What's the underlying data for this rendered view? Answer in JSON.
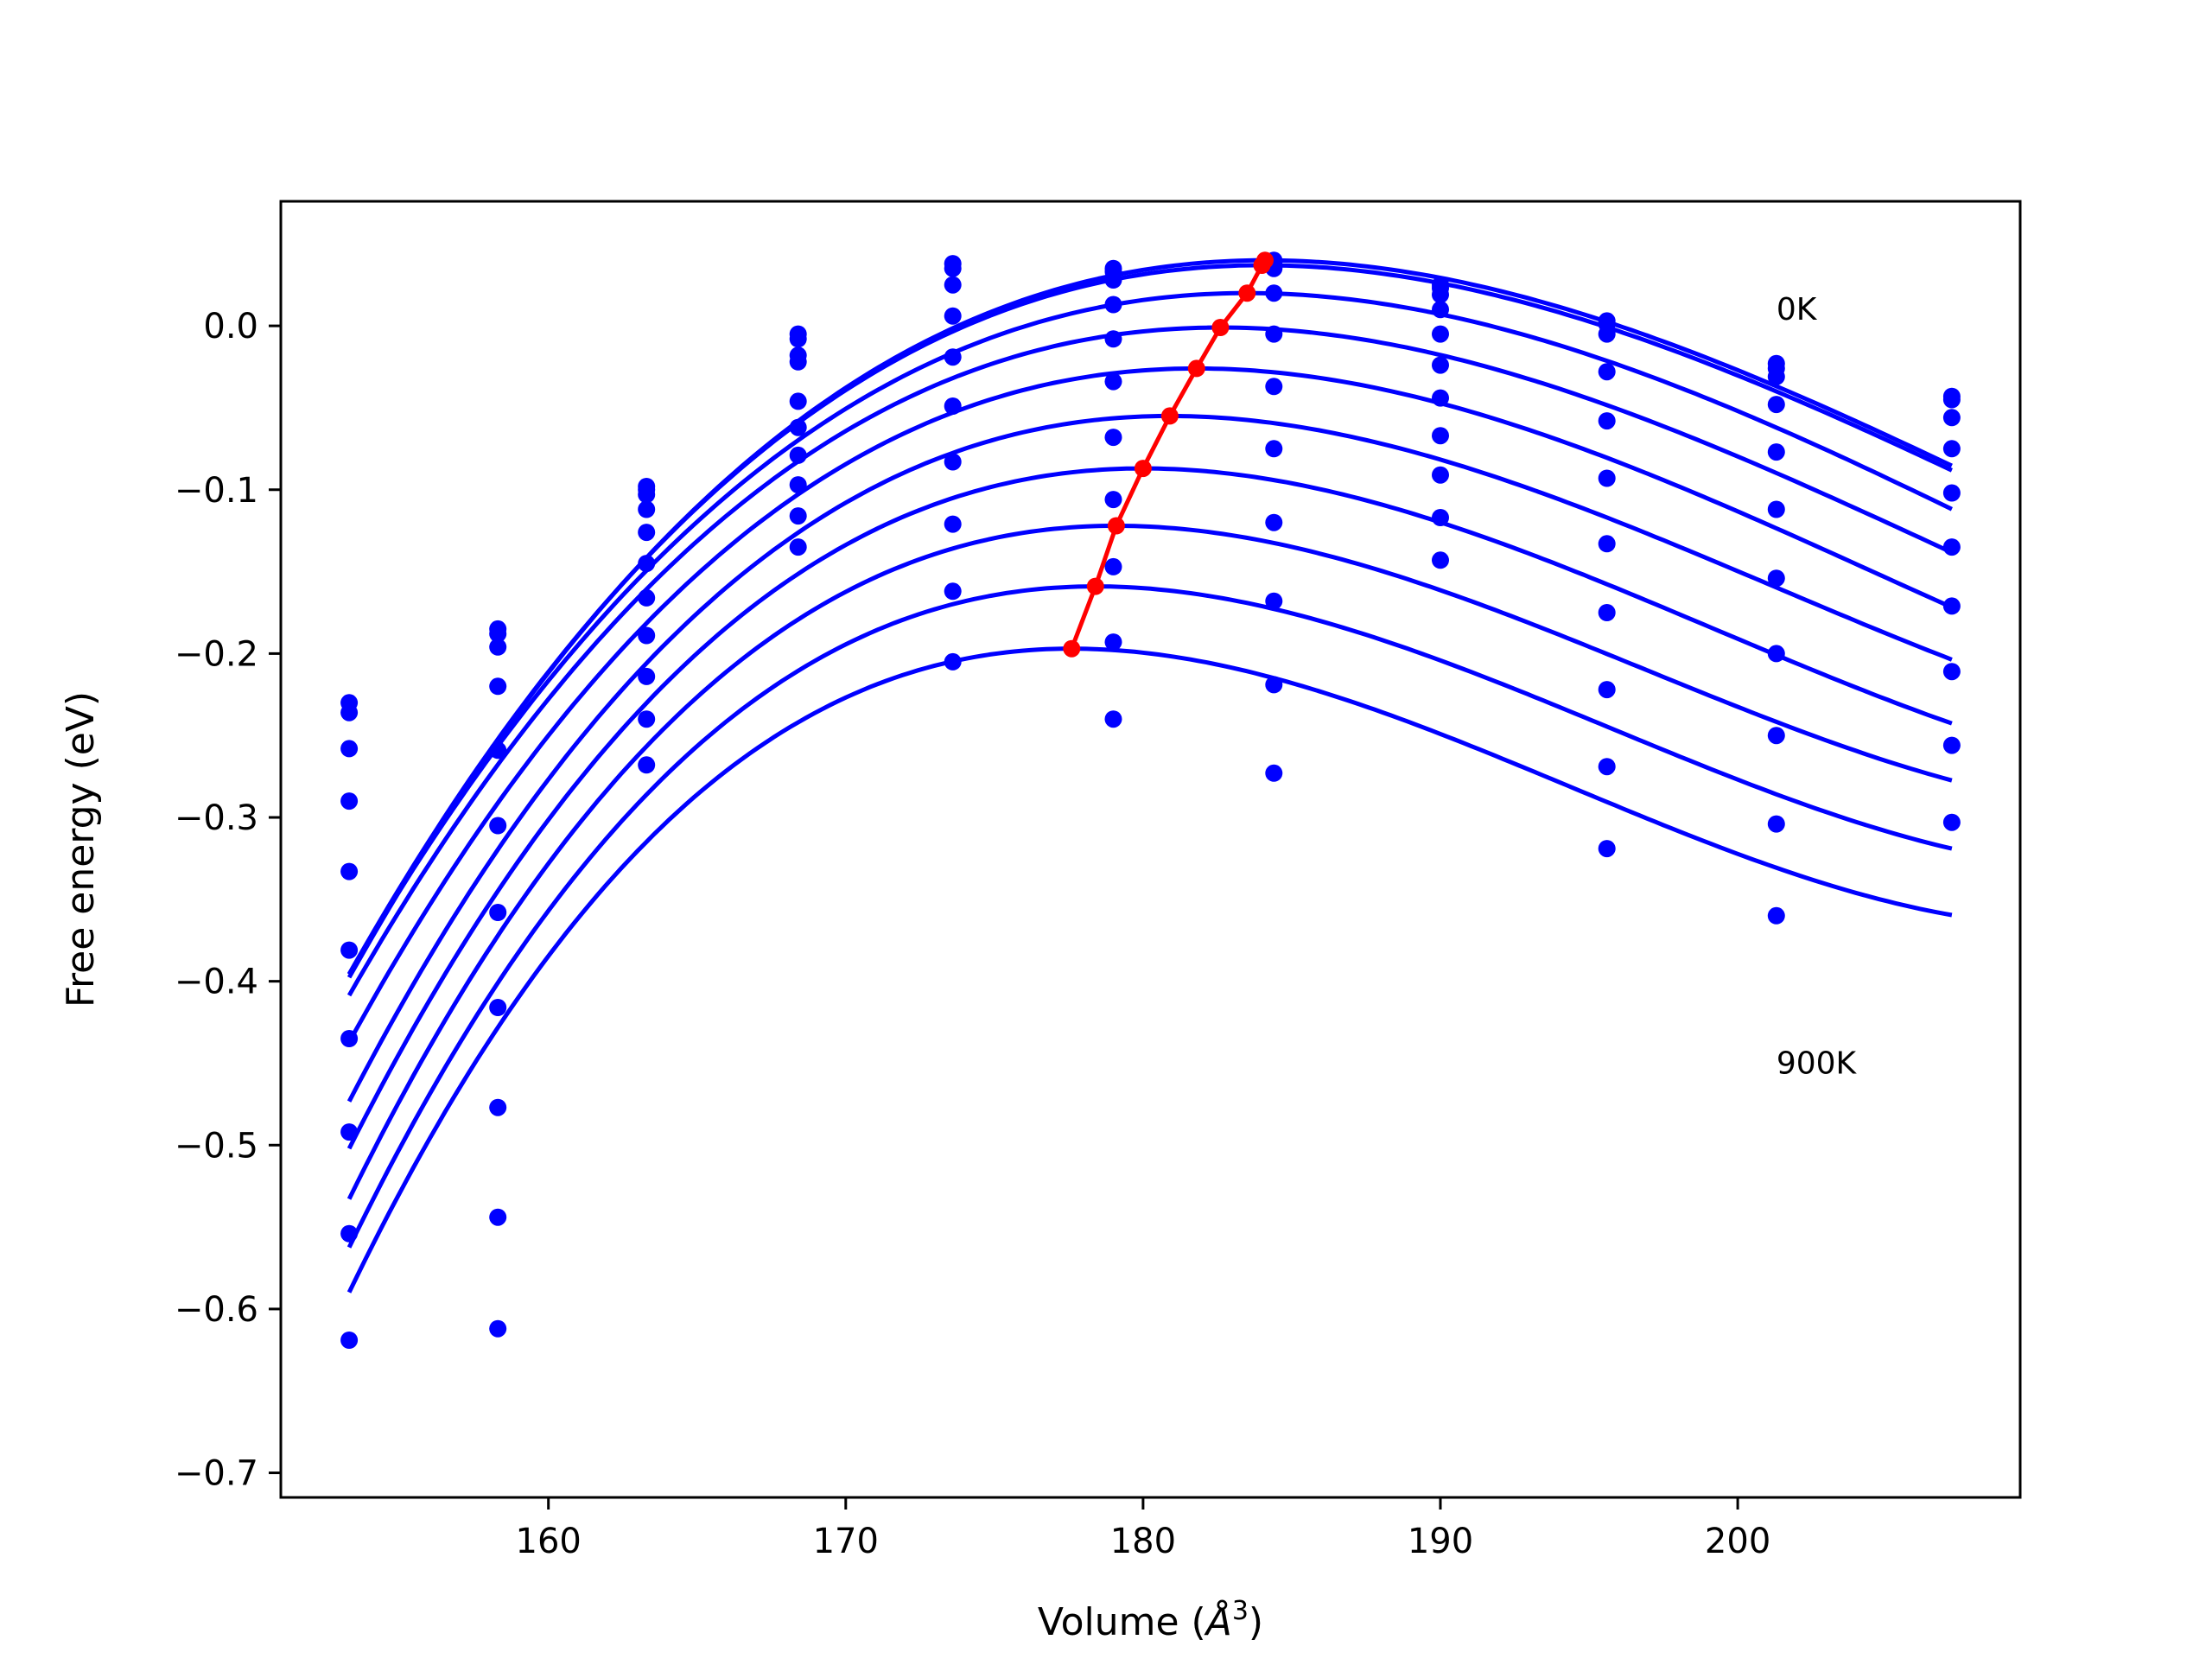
{
  "chart_data": {
    "type": "scatter",
    "xlabel": "Volume (Å³)",
    "xlabel_text": "Volume (",
    "xlabel_unit_base": "Å",
    "xlabel_unit_sup": "3",
    "xlabel_close": ")",
    "ylabel": "Free energy (eV)",
    "xlim": [
      151,
      209.5
    ],
    "ylim": [
      -0.715,
      0.076
    ],
    "x_ticks": [
      160,
      170,
      180,
      190,
      200
    ],
    "y_ticks": [
      0.0,
      -0.1,
      -0.2,
      -0.3,
      -0.4,
      -0.5,
      -0.6,
      -0.7
    ],
    "y_tick_labels": [
      "0.0",
      "−0.1",
      "−0.2",
      "−0.3",
      "−0.4",
      "−0.5",
      "−0.6",
      "−0.7"
    ],
    "grid": false,
    "annotations": [
      {
        "text": "0K",
        "x": 201.3,
        "y": 0.01
      },
      {
        "text": "900K",
        "x": 201.3,
        "y": -0.45
      }
    ],
    "volumes": [
      153.3,
      158.3,
      163.3,
      168.4,
      173.6,
      179.0,
      184.4,
      190.0,
      195.6,
      201.3,
      207.2
    ],
    "series": [
      {
        "name": "",
        "values": [
          -0.23,
          -0.185,
          -0.098,
          -0.005,
          0.038,
          0.035,
          0.04,
          0.025,
          0.003,
          -0.023,
          -0.043
        ]
      },
      {
        "name": "",
        "values": [
          -0.236,
          -0.188,
          -0.1,
          -0.008,
          0.035,
          0.033,
          0.038,
          0.023,
          0.001,
          -0.026,
          -0.045
        ]
      },
      {
        "name": "",
        "values": [
          -0.258,
          -0.196,
          -0.103,
          -0.018,
          0.025,
          0.028,
          0.035,
          0.019,
          -0.005,
          -0.031,
          -0.056
        ]
      },
      {
        "name": "",
        "values": [
          -0.29,
          -0.22,
          -0.112,
          -0.022,
          0.006,
          0.013,
          0.02,
          0.01,
          -0.028,
          -0.048,
          -0.075
        ]
      },
      {
        "name": "",
        "values": [
          -0.333,
          -0.259,
          -0.126,
          -0.046,
          -0.019,
          -0.008,
          -0.005,
          -0.005,
          -0.058,
          -0.077,
          -0.102
        ]
      },
      {
        "name": "",
        "values": [
          -0.381,
          -0.305,
          -0.145,
          -0.062,
          -0.049,
          -0.034,
          -0.037,
          -0.024,
          -0.093,
          -0.112,
          -0.135
        ]
      },
      {
        "name": "",
        "values": [
          -0.435,
          -0.358,
          -0.166,
          -0.079,
          -0.083,
          -0.068,
          -0.075,
          -0.044,
          -0.133,
          -0.154,
          -0.171
        ]
      },
      {
        "name": "",
        "values": [
          -0.492,
          -0.416,
          -0.189,
          -0.097,
          -0.121,
          -0.106,
          -0.12,
          -0.067,
          -0.175,
          -0.2,
          -0.211
        ]
      },
      {
        "name": "",
        "values": [
          -0.554,
          -0.477,
          -0.214,
          -0.116,
          -0.162,
          -0.147,
          -0.168,
          -0.091,
          -0.222,
          -0.25,
          -0.256
        ]
      },
      {
        "name": "",
        "values": [
          -0.619,
          -0.544,
          -0.24,
          -0.135,
          -0.205,
          -0.193,
          -0.219,
          -0.117,
          -0.269,
          -0.304,
          -0.303
        ]
      },
      {
        "name": "",
        "values": [
          null,
          -0.612,
          -0.268,
          null,
          null,
          -0.24,
          -0.273,
          -0.143,
          -0.319,
          -0.36,
          null
        ]
      }
    ],
    "fitted_curves": [
      {
        "name": "",
        "v0": 184.1,
        "e0": 0.04,
        "a": -0.000332,
        "b": 4.2e-06,
        "x_range": [
          153.3,
          207.2
        ]
      },
      {
        "name": "",
        "v0": 184.0,
        "e0": 0.037,
        "a": -0.00033,
        "b": 4.2e-06,
        "x_range": [
          153.3,
          207.2
        ]
      },
      {
        "name": "",
        "v0": 183.5,
        "e0": 0.02,
        "a": -0.000332,
        "b": 4.1e-06,
        "x_range": [
          153.3,
          207.2
        ]
      },
      {
        "name": "",
        "v0": 182.6,
        "e0": -0.001,
        "a": -0.00034,
        "b": 4.6e-06,
        "x_range": [
          153.3,
          207.2
        ]
      },
      {
        "name": "",
        "v0": 181.8,
        "e0": -0.026,
        "a": -0.000358,
        "b": 5.2e-06,
        "x_range": [
          153.3,
          207.2
        ]
      },
      {
        "name": "",
        "v0": 180.9,
        "e0": -0.055,
        "a": -0.000378,
        "b": 6.2e-06,
        "x_range": [
          153.3,
          207.2
        ]
      },
      {
        "name": "",
        "v0": 180.0,
        "e0": -0.087,
        "a": -0.000398,
        "b": 6.9e-06,
        "x_range": [
          153.3,
          207.2
        ]
      },
      {
        "name": "",
        "v0": 179.1,
        "e0": -0.122,
        "a": -0.000416,
        "b": 7.8e-06,
        "x_range": [
          153.3,
          207.2
        ]
      },
      {
        "name": "",
        "v0": 178.4,
        "e0": -0.159,
        "a": -0.000432,
        "b": 8.3e-06,
        "x_range": [
          153.3,
          207.2
        ]
      },
      {
        "name": "",
        "v0": 177.6,
        "e0": -0.197,
        "a": -0.000449,
        "b": 8.9e-06,
        "x_range": [
          153.3,
          207.2
        ]
      }
    ],
    "minima_path": {
      "name": "",
      "x": [
        177.6,
        178.4,
        179.1,
        180.0,
        180.9,
        181.8,
        182.6,
        183.5,
        184.0,
        184.1
      ],
      "y": [
        -0.197,
        -0.159,
        -0.122,
        -0.087,
        -0.055,
        -0.026,
        -0.001,
        0.02,
        0.037,
        0.04
      ]
    },
    "colors": {
      "points": "#0000ff",
      "curves": "#0000ff",
      "minima": "#ff0000",
      "axes": "#000000"
    }
  }
}
